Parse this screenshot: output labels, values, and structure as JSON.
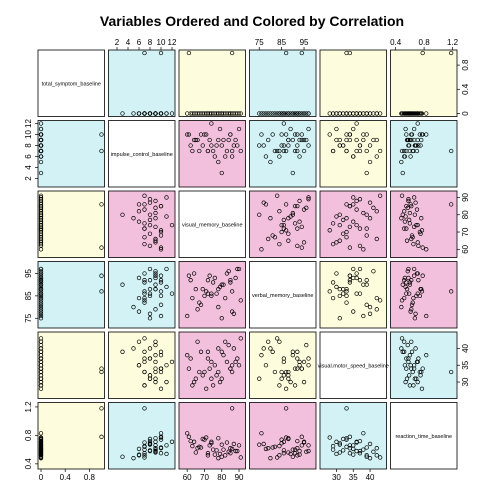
{
  "chart_data": {
    "type": "scatter",
    "title": "Variables Ordered and Colored by Correlation",
    "variables": [
      "total_symptom_baseline",
      "impulse_control_baseline",
      "visual_memory_baseline",
      "verbal_memory_baseline",
      "visual.motor_speed_baseline",
      "reaction_time_baseline"
    ],
    "ranges": [
      [
        0,
        1
      ],
      [
        1,
        12
      ],
      [
        57,
        92
      ],
      [
        72,
        99
      ],
      [
        26,
        44
      ],
      [
        0.37,
        1.22
      ]
    ],
    "ticks": [
      [
        "0",
        "0.4",
        "0.8"
      ],
      [
        "2",
        "4",
        "6",
        "8",
        "10",
        "12"
      ],
      [
        "60",
        "70",
        "80",
        "90"
      ],
      [
        "75",
        "85",
        "95"
      ],
      [
        "30",
        "35",
        "40"
      ],
      [
        "0.4",
        "0.8",
        "1.2"
      ]
    ],
    "tick_values": [
      [
        0,
        0.4,
        0.8
      ],
      [
        2,
        4,
        6,
        8,
        10,
        12
      ],
      [
        60,
        70,
        80,
        90
      ],
      [
        75,
        85,
        95
      ],
      [
        30,
        35,
        40
      ],
      [
        0.4,
        0.8,
        1.2
      ]
    ],
    "panel_colors": {
      "diagonal": "#ffffff",
      "yellow": "#fdfddd",
      "cyan": "#d2f2f5",
      "pink": "#f2c0dc"
    },
    "panel_color_matrix": [
      [
        "diagonal",
        "cyan",
        "yellow",
        "cyan",
        "yellow",
        "yellow"
      ],
      [
        "cyan",
        "diagonal",
        "pink",
        "cyan",
        "yellow",
        "cyan"
      ],
      [
        "yellow",
        "pink",
        "diagonal",
        "pink",
        "pink",
        "pink"
      ],
      [
        "cyan",
        "cyan",
        "pink",
        "diagonal",
        "yellow",
        "pink"
      ],
      [
        "yellow",
        "yellow",
        "pink",
        "yellow",
        "diagonal",
        "cyan"
      ],
      [
        "yellow",
        "cyan",
        "pink",
        "pink",
        "cyan",
        "diagonal"
      ]
    ],
    "data": [
      [
        0,
        10,
        85,
        92,
        34,
        0.62
      ],
      [
        0,
        7,
        72,
        86,
        37,
        0.55
      ],
      [
        0,
        9,
        64,
        95,
        30,
        0.71
      ],
      [
        0,
        5,
        78,
        80,
        40,
        0.48
      ],
      [
        0,
        11,
        90,
        97,
        35,
        0.66
      ],
      [
        0,
        8,
        69,
        88,
        32,
        0.75
      ],
      [
        0,
        6,
        82,
        84,
        42,
        0.52
      ],
      [
        0,
        7,
        75,
        91,
        29,
        0.6
      ],
      [
        0,
        10,
        60,
        76,
        38,
        0.83
      ],
      [
        0,
        9,
        88,
        93,
        36,
        0.58
      ],
      [
        0,
        8,
        74,
        85,
        31,
        0.69
      ],
      [
        0,
        3,
        80,
        90,
        39,
        0.5
      ],
      [
        0,
        7,
        67,
        82,
        33,
        0.64
      ],
      [
        0,
        9,
        84,
        96,
        41,
        0.57
      ],
      [
        0,
        10,
        71,
        87,
        28,
        0.77
      ],
      [
        0,
        6,
        86,
        78,
        35,
        0.61
      ],
      [
        0,
        8,
        62,
        92,
        37,
        0.72
      ],
      [
        0,
        11,
        79,
        89,
        30,
        0.54
      ],
      [
        0,
        7,
        91,
        83,
        43,
        0.49
      ],
      [
        0,
        9,
        73,
        94,
        34,
        0.66
      ],
      [
        0,
        8,
        77,
        86,
        32,
        0.59
      ],
      [
        0,
        10,
        68,
        81,
        39,
        0.63
      ],
      [
        0,
        7,
        83,
        95,
        36,
        0.7
      ],
      [
        0,
        9,
        65,
        88,
        31,
        0.56
      ],
      [
        0,
        8,
        87,
        77,
        40,
        0.68
      ],
      [
        0,
        6,
        76,
        93,
        35,
        0.53
      ],
      [
        0,
        10,
        70,
        85,
        33,
        0.74
      ],
      [
        0,
        9,
        81,
        90,
        38,
        0.6
      ],
      [
        0,
        7,
        63,
        84,
        29,
        0.65
      ],
      [
        0,
        8,
        89,
        97,
        37,
        0.58
      ],
      [
        0,
        9,
        66,
        79,
        42,
        0.62
      ],
      [
        0,
        10,
        85,
        91,
        34,
        0.55
      ],
      [
        0,
        12,
        74,
        86,
        36,
        0.71
      ],
      [
        0,
        8,
        80,
        75,
        31,
        0.67
      ],
      [
        0,
        7,
        72,
        92,
        39,
        0.52
      ],
      [
        0,
        9,
        78,
        88,
        33,
        0.76
      ],
      [
        1,
        7,
        86,
        87,
        33,
        1.18
      ],
      [
        1,
        10,
        61,
        94,
        34,
        0.78
      ]
    ]
  }
}
